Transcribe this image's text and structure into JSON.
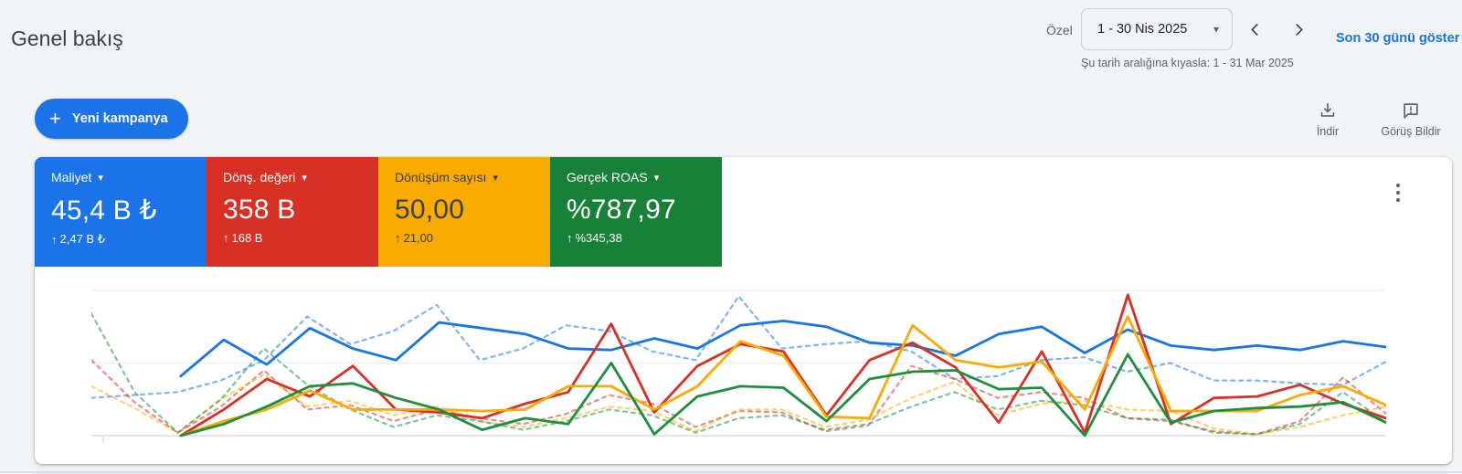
{
  "page": {
    "title": "Genel bakış"
  },
  "icons": {
    "plus": "+",
    "caret_down": "▾",
    "up_arrow": "↑"
  },
  "date_bar": {
    "custom_label": "Özel",
    "range": "1 - 30 Nis 2025",
    "show_last_30": "Son 30 günü göster",
    "compare_text": "Şu tarih aralığına kıyasla: 1 - 31 Mar 2025"
  },
  "toolbar": {
    "new_campaign": "Yeni kampanya",
    "download": "İndir",
    "feedback": "Görüş Bildir"
  },
  "metric_cards": [
    {
      "label": "Maliyet",
      "value": "45,4 B ₺",
      "delta": "2,47 B ₺",
      "color": "#1a73e8",
      "text_color": "#ffffff"
    },
    {
      "label": "Dönş. değeri",
      "value": "358 B",
      "delta": "168 B",
      "color": "#d93025",
      "text_color": "#ffffff"
    },
    {
      "label": "Dönüşüm sayısı",
      "value": "50,00",
      "delta": "21,00",
      "color": "#f9ab00",
      "text_color": "#3c4043"
    },
    {
      "label": "Gerçek ROAS",
      "value": "%787,97",
      "delta": "%345,38",
      "color": "#188038",
      "text_color": "#ffffff"
    }
  ],
  "chart_data": {
    "type": "line",
    "title": "",
    "xlabel": "",
    "ylabel": "",
    "x_range_current": "1 - 30 Nis 2025",
    "x_range_previous": "1 - 31 Mar 2025",
    "y_unit": "normalized: 0 = bottom gridline, 100 = top gridline",
    "gridlines": 3,
    "axis_labels_visible": false,
    "legend": "color-coded metric cards above chart",
    "series": [
      {
        "name": "Maliyet",
        "period": "previous",
        "dashed": true,
        "color": "#1a73e8",
        "span": [
          0,
          1
        ],
        "values": [
          26,
          28,
          30,
          38,
          52,
          82,
          63,
          72,
          90,
          52,
          60,
          76,
          72,
          58,
          52,
          96,
          60,
          63,
          65,
          58,
          39,
          41,
          52,
          54,
          44,
          50,
          38,
          38,
          36,
          35,
          51
        ]
      },
      {
        "name": "Dönş. değeri",
        "period": "previous",
        "dashed": true,
        "color": "#d93025",
        "span": [
          0,
          1
        ],
        "values": [
          52,
          23,
          2,
          20,
          45,
          18,
          21,
          10,
          18,
          12,
          8,
          15,
          28,
          22,
          6,
          17,
          16,
          3,
          7,
          48,
          39,
          26,
          30,
          26,
          12,
          10,
          3,
          1,
          10,
          40,
          15
        ]
      },
      {
        "name": "Dönüşüm sayısı",
        "period": "previous",
        "dashed": true,
        "color": "#f9ab00",
        "span": [
          0,
          1
        ],
        "values": [
          34,
          19,
          2,
          25,
          42,
          20,
          24,
          14,
          20,
          10,
          6,
          12,
          20,
          17,
          3,
          18,
          18,
          6,
          11,
          26,
          37,
          14,
          22,
          24,
          18,
          17,
          5,
          1,
          6,
          14,
          20
        ]
      },
      {
        "name": "Gerçek ROAS",
        "period": "previous",
        "dashed": true,
        "color": "#1e8e3e",
        "span": [
          0,
          1
        ],
        "values": [
          84,
          30,
          2,
          25,
          60,
          35,
          18,
          6,
          14,
          10,
          4,
          10,
          18,
          14,
          2,
          12,
          14,
          4,
          8,
          20,
          30,
          18,
          24,
          21,
          12,
          11,
          2,
          1,
          8,
          30,
          9
        ]
      },
      {
        "name": "Maliyet",
        "period": "current",
        "dashed": false,
        "color": "#1a73e8",
        "span": [
          0.069,
          1
        ],
        "values": [
          41,
          66,
          49,
          74,
          60,
          52,
          78,
          74,
          70,
          60,
          59,
          67,
          60,
          76,
          79,
          75,
          64,
          62,
          55,
          70,
          75,
          57,
          73,
          62,
          59,
          62,
          59,
          65,
          61
        ]
      },
      {
        "name": "Dönş. değeri",
        "period": "current",
        "dashed": false,
        "color": "#d93025",
        "span": [
          0.069,
          1
        ],
        "values": [
          0,
          18,
          39,
          27,
          48,
          18,
          16,
          12,
          22,
          30,
          77,
          16,
          48,
          63,
          58,
          14,
          52,
          64,
          47,
          9,
          58,
          2,
          97,
          8,
          26,
          27,
          35,
          22,
          12
        ]
      },
      {
        "name": "Dönüşüm sayısı",
        "period": "current",
        "dashed": false,
        "color": "#f9ab00",
        "span": [
          0.069,
          1
        ],
        "values": [
          0,
          10,
          18,
          31,
          18,
          18,
          18,
          17,
          18,
          34,
          34,
          18,
          34,
          65,
          55,
          13,
          12,
          76,
          52,
          47,
          51,
          18,
          82,
          17,
          17,
          17,
          28,
          34,
          21
        ]
      },
      {
        "name": "Gerçek ROAS",
        "period": "current",
        "dashed": false,
        "color": "#1e8e3e",
        "span": [
          0.069,
          1
        ],
        "values": [
          0,
          8,
          20,
          34,
          36,
          26,
          18,
          4,
          12,
          8,
          50,
          1,
          27,
          34,
          33,
          10,
          39,
          44,
          45,
          32,
          33,
          0,
          56,
          9,
          17,
          19,
          20,
          23,
          9
        ]
      }
    ]
  }
}
